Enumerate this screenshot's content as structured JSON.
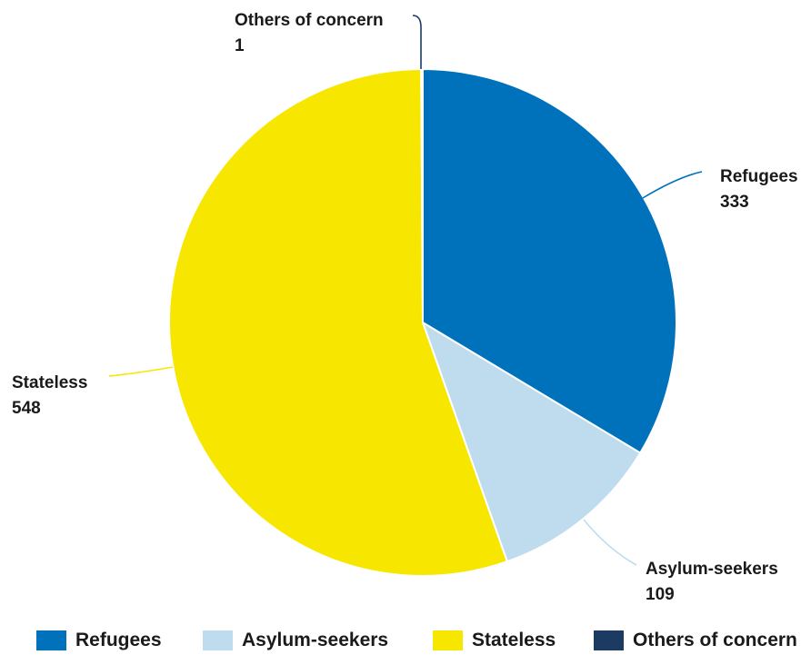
{
  "chart_data": {
    "type": "pie",
    "categories": [
      "Refugees",
      "Asylum-seekers",
      "Stateless",
      "Others of concern"
    ],
    "values": [
      333,
      109,
      548,
      1
    ],
    "colors": [
      "#0072bc",
      "#bfdcee",
      "#f7e700",
      "#1b3b63"
    ],
    "data_labels": [
      {
        "name": "Refugees",
        "value": "333"
      },
      {
        "name": "Asylum-seekers",
        "value": "109"
      },
      {
        "name": "Stateless",
        "value": "548"
      },
      {
        "name": "Others of concern",
        "value": "1"
      }
    ],
    "legend": {
      "position": "bottom",
      "items": [
        "Refugees",
        "Asylum-seekers",
        "Stateless",
        "Others of concern"
      ]
    }
  }
}
